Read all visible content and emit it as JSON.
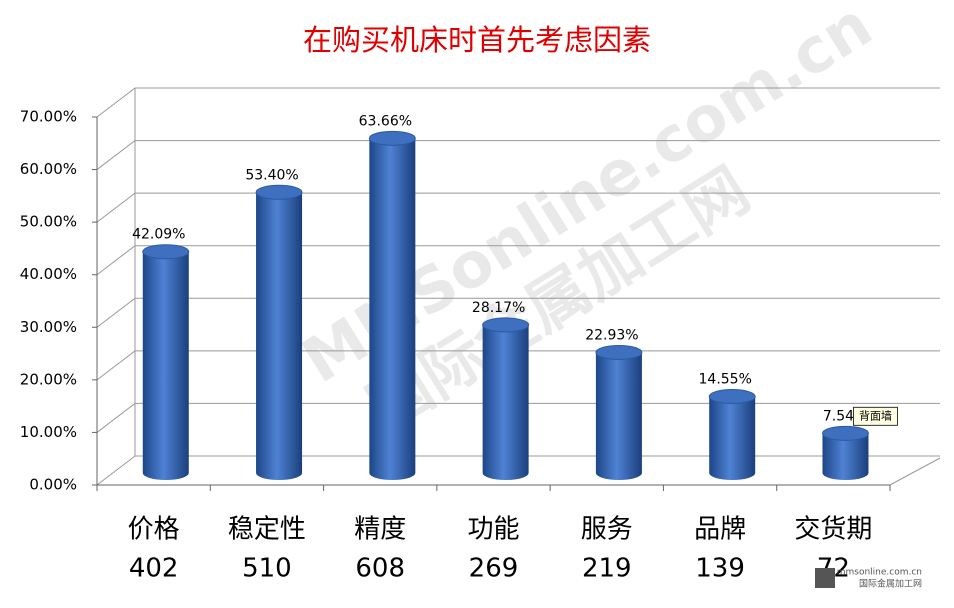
{
  "chart_data": {
    "type": "bar3d",
    "title": "在购买机床时首先考虑因素",
    "categories": [
      "价格",
      "稳定性",
      "精度",
      "功能",
      "服务",
      "品牌",
      "交货期"
    ],
    "category_counts": [
      402,
      510,
      608,
      269,
      219,
      139,
      72
    ],
    "values": [
      42.09,
      53.4,
      63.66,
      28.17,
      22.93,
      14.55,
      7.54
    ],
    "value_labels": [
      "42.09%",
      "53.40%",
      "63.66%",
      "28.17%",
      "22.93%",
      "14.55%",
      "7.54"
    ],
    "color": "#3a6fc0",
    "ylim": [
      0,
      70
    ],
    "yticks": [
      {
        "value": 0,
        "label": "0.00%"
      },
      {
        "value": 10,
        "label": "10.00%"
      },
      {
        "value": 20,
        "label": "20.00%"
      },
      {
        "value": 30,
        "label": "30.00%"
      },
      {
        "value": 40,
        "label": "40.00%"
      },
      {
        "value": 50,
        "label": "50.00%"
      },
      {
        "value": 60,
        "label": "60.00%"
      },
      {
        "value": 70,
        "label": "70.00%"
      }
    ],
    "grid": true,
    "tooltip": "背面墙",
    "watermark": "MMSonline.com.cn",
    "watermark_cn": "国际金属加工网",
    "logo": "mmsonline.com.cn",
    "logo_cn": "国际金属加工网"
  }
}
